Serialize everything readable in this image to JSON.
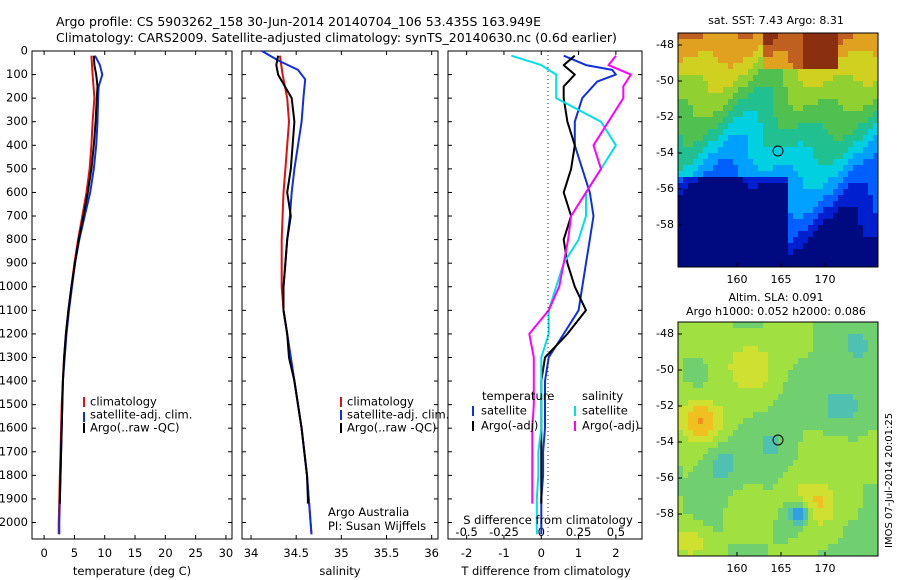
{
  "title": {
    "line1": "Argo profile: CS 5903262_158 30-Jun-2014 20140704_106 53.435S 163.949E",
    "line2": "Climatology: CARS2009. Satellite-adjusted climatology: synTS_20140630.nc (0.6d earlier)"
  },
  "watermark": "IMOS 07-Jul-2014 20:01:25",
  "colors": {
    "climatology": "#e01010",
    "satellite": "#1030e0",
    "argo": "#000000",
    "sat_s": "#00e0e8",
    "argo_s": "#ff00ff"
  },
  "y_axis": {
    "ticks": [
      0,
      100,
      200,
      300,
      400,
      500,
      600,
      700,
      800,
      900,
      1000,
      1100,
      1200,
      1300,
      1400,
      1500,
      1600,
      1700,
      1800,
      1900,
      2000
    ]
  },
  "panel_notes": {
    "institution": "Argo Australia",
    "pi": "PI: Susan Wijffels"
  },
  "maps": {
    "sst": {
      "title": "sat. SST: 7.43 Argo: 8.31",
      "yticks": [
        "-48",
        "-50",
        "-52",
        "-54",
        "-56",
        "-58"
      ],
      "xticks": [
        "160",
        "165",
        "170"
      ]
    },
    "sla": {
      "title1": "Altim. SLA: 0.091",
      "title2": "Argo h1000: 0.052 h2000: 0.086",
      "yticks": [
        "-48",
        "-50",
        "-52",
        "-54",
        "-56",
        "-58"
      ],
      "xticks": [
        "160",
        "165",
        "170"
      ]
    }
  },
  "chart_data": [
    {
      "type": "line",
      "xlabel": "temperature (deg C)",
      "xticks": [
        0,
        5,
        10,
        15,
        20,
        25,
        30
      ],
      "xlim": [
        -2,
        31
      ],
      "ylim": [
        2070,
        0
      ],
      "legend": [
        "climatology",
        "satellite-adj. clim.",
        "Argo(..raw -QC)"
      ],
      "series": [
        {
          "name": "climatology",
          "color": "#e01010",
          "depth": [
            20,
            100,
            200,
            300,
            400,
            500,
            600,
            700,
            800,
            900,
            1000,
            1100,
            1200,
            1300,
            1400,
            1500,
            1600,
            1700,
            1800,
            1900,
            2000,
            2050
          ],
          "values": [
            7.8,
            8.0,
            8.3,
            8.0,
            7.8,
            7.5,
            7.0,
            6.3,
            5.6,
            5.0,
            4.5,
            4.0,
            3.6,
            3.3,
            3.1,
            2.9,
            2.8,
            2.7,
            2.6,
            2.5,
            2.4,
            2.4
          ]
        },
        {
          "name": "satellite-adj. clim.",
          "color": "#1030e0",
          "depth": [
            20,
            60,
            100,
            150,
            200,
            300,
            400,
            500,
            600,
            700,
            800,
            900,
            1000,
            1100,
            1200,
            1300,
            1400,
            1500,
            1600,
            1700,
            1800,
            1900,
            2000,
            2050
          ],
          "values": [
            8.4,
            9.2,
            9.6,
            9.0,
            8.9,
            8.8,
            8.6,
            8.2,
            7.6,
            6.7,
            5.8,
            5.1,
            4.6,
            4.1,
            3.7,
            3.4,
            3.1,
            3.0,
            2.9,
            2.8,
            2.7,
            2.6,
            2.5,
            2.5
          ]
        },
        {
          "name": "Argo(..raw -QC)",
          "color": "#000000",
          "depth": [
            20,
            60,
            100,
            150,
            200,
            300,
            400,
            500,
            600,
            700,
            800,
            900,
            1000,
            1100,
            1200,
            1300,
            1400,
            1500,
            1600,
            1700,
            1800,
            1900,
            1920
          ],
          "values": [
            8.2,
            8.3,
            8.6,
            8.8,
            8.7,
            8.5,
            8.2,
            7.8,
            7.2,
            6.5,
            5.7,
            5.1,
            4.5,
            4.0,
            3.6,
            3.3,
            3.1,
            3.0,
            2.9,
            2.8,
            2.7,
            2.6,
            2.6
          ]
        }
      ]
    },
    {
      "type": "line",
      "xlabel": "salinity",
      "xticks": [
        34,
        34.5,
        35,
        35.5,
        36
      ],
      "xlim": [
        33.9,
        36.07
      ],
      "ylim": [
        2070,
        0
      ],
      "legend": [
        "climatology",
        "satellite-adj. clim.",
        "Argo(..raw -QC)"
      ],
      "series": [
        {
          "name": "climatology",
          "color": "#e01010",
          "depth": [
            20,
            100,
            200,
            300,
            400,
            500,
            600,
            700,
            800,
            900,
            1000,
            1100,
            1200,
            1300,
            1400,
            1500,
            1600,
            1700,
            1800,
            1900,
            2000,
            2050
          ],
          "values": [
            34.32,
            34.35,
            34.4,
            34.42,
            34.4,
            34.38,
            34.36,
            34.35,
            34.34,
            34.34,
            34.34,
            34.36,
            34.4,
            34.44,
            34.48,
            34.52,
            34.56,
            34.59,
            34.62,
            34.64,
            34.66,
            34.67
          ]
        },
        {
          "name": "satellite-adj. clim.",
          "color": "#1030e0",
          "depth": [
            0,
            40,
            80,
            120,
            200,
            300,
            400,
            500,
            600,
            700,
            800,
            900,
            1000,
            1100,
            1200,
            1300,
            1400,
            1500,
            1600,
            1700,
            1800,
            1900,
            2000,
            2050
          ],
          "values": [
            34.12,
            34.3,
            34.52,
            34.6,
            34.58,
            34.56,
            34.52,
            34.48,
            34.45,
            34.43,
            34.4,
            34.38,
            34.36,
            34.36,
            34.4,
            34.44,
            34.48,
            34.52,
            34.56,
            34.59,
            34.62,
            34.64,
            34.66,
            34.67
          ]
        },
        {
          "name": "Argo(..raw -QC)",
          "color": "#000000",
          "depth": [
            20,
            60,
            100,
            200,
            300,
            400,
            500,
            600,
            700,
            800,
            900,
            1000,
            1100,
            1200,
            1300,
            1400,
            1500,
            1600,
            1700,
            1800,
            1900,
            1920
          ],
          "values": [
            34.3,
            34.28,
            34.3,
            34.45,
            34.48,
            34.46,
            34.44,
            34.4,
            34.44,
            34.4,
            34.38,
            34.36,
            34.36,
            34.4,
            34.42,
            34.48,
            34.52,
            34.56,
            34.59,
            34.62,
            34.63,
            34.63
          ]
        }
      ]
    },
    {
      "type": "line",
      "xlabel": "T difference from climatology",
      "xlabel_top": "S difference from climatology",
      "xticks": [
        -2,
        -1,
        0,
        1,
        2
      ],
      "xticks_top": [
        "-0.5",
        "-0.25",
        "0",
        "0.25",
        "0.5"
      ],
      "xlim": [
        -2.5,
        2.7
      ],
      "ylim": [
        2070,
        0
      ],
      "legend_left_title": "temperature",
      "legend_right_title": "salinity",
      "legend": [
        "satellite",
        "Argo(-adj)",
        "satellite",
        "Argo(-adj)"
      ],
      "series": [
        {
          "name": "satellite",
          "color": "#1030e0",
          "depth": [
            20,
            60,
            80,
            100,
            130,
            200,
            300,
            400,
            500,
            600,
            700,
            800,
            900,
            1000,
            1100,
            1200,
            1300,
            1400,
            1500,
            1600,
            1700,
            1800,
            1900,
            2000,
            2050
          ],
          "values": [
            0.6,
            1.2,
            1.9,
            2.0,
            1.5,
            1.1,
            0.9,
            0.9,
            1.1,
            1.3,
            1.4,
            1.3,
            1.2,
            1.1,
            1.0,
            0.6,
            0.2,
            0.1,
            0.1,
            0.1,
            0.05,
            0.05,
            0.0,
            0.0,
            0.0
          ]
        },
        {
          "name": "Argo(-adj)",
          "color": "#000000",
          "depth": [
            20,
            60,
            100,
            150,
            200,
            300,
            400,
            500,
            600,
            700,
            800,
            900,
            1000,
            1100,
            1200,
            1300,
            1400,
            1500,
            1600,
            1700,
            1800,
            1900,
            1920
          ],
          "values": [
            0.9,
            0.6,
            0.9,
            0.6,
            0.6,
            0.7,
            0.9,
            0.8,
            0.6,
            0.8,
            0.6,
            0.7,
            0.9,
            1.2,
            0.7,
            0.1,
            0.0,
            0.0,
            0.0,
            0.0,
            0.0,
            0.0,
            0.0
          ]
        },
        {
          "name": "satellite",
          "color": "#00e0e8",
          "depth": [
            20,
            60,
            100,
            200,
            300,
            400,
            500,
            600,
            700,
            800,
            900,
            1000,
            1100,
            1200,
            1300,
            1400,
            1500,
            1600,
            1700,
            1800,
            1900,
            2000,
            2050
          ],
          "values": [
            -0.2,
            0.0,
            0.1,
            0.1,
            0.4,
            0.5,
            0.4,
            0.3,
            0.3,
            0.25,
            0.15,
            0.1,
            0.05,
            0.05,
            0.0,
            0.0,
            0.0,
            0.0,
            -0.02,
            -0.02,
            -0.03,
            -0.03,
            -0.03
          ]
        },
        {
          "name": "Argo(-adj)",
          "color": "#ff00ff",
          "depth": [
            20,
            60,
            100,
            150,
            200,
            300,
            400,
            500,
            600,
            700,
            800,
            900,
            1000,
            1100,
            1200,
            1300,
            1400,
            1500,
            1600,
            1700,
            1800,
            1900,
            1920
          ],
          "values": [
            0.5,
            0.45,
            0.6,
            0.55,
            0.55,
            0.45,
            0.35,
            0.4,
            0.3,
            0.2,
            0.18,
            0.15,
            0.12,
            0.05,
            -0.08,
            -0.05,
            -0.05,
            -0.05,
            -0.06,
            -0.06,
            -0.06,
            -0.06,
            -0.06
          ]
        }
      ]
    }
  ]
}
